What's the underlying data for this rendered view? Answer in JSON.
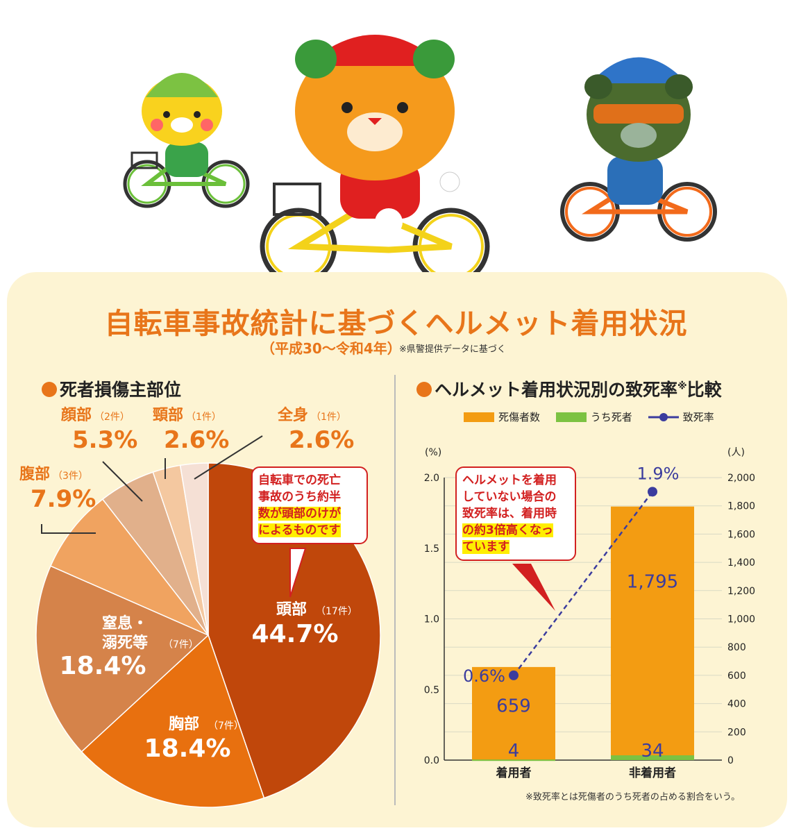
{
  "title": "自転車事故統計に基づくヘルメット着用状況",
  "subtitle": "（平成30～令和4年）",
  "source_note": "※県警提供データに基づく",
  "footnote": "※致死率とは死傷者のうち死者の占める割合をいう。",
  "colors": {
    "accent": "#e8751a",
    "panel": "#fdf4d3",
    "bar_total": "#f39c12",
    "bar_dead": "#7cc242",
    "rate": "#3b3c9e"
  },
  "pie_section": {
    "title": "死者損傷主部位",
    "callout": {
      "lines": [
        "自転車での死亡",
        "事故のうち約半",
        "数が頭部のけが",
        "によるものです"
      ]
    }
  },
  "bar_section": {
    "title": "ヘルメット着用状況別の致死率",
    "title_sup": "※",
    "title_tail": "比較",
    "legend": [
      "死傷者数",
      "うち死者",
      "致死率"
    ],
    "callout": {
      "lines": [
        "ヘルメットを着用",
        "していない場合の",
        "致死率は、着用時",
        "の約3倍高くなっ",
        "ています"
      ]
    }
  },
  "chart_data": [
    {
      "type": "pie",
      "title": "死者損傷主部位",
      "slices": [
        {
          "label": "頭部",
          "count_label": "（17件）",
          "count": 17,
          "percent": 44.7,
          "value_text": "44.7%",
          "color": "#c0470b"
        },
        {
          "label": "胸部",
          "count_label": "（7件）",
          "count": 7,
          "percent": 18.4,
          "value_text": "18.4%",
          "color": "#e8700f"
        },
        {
          "label": "窒息・溺死等",
          "label_lines": [
            "窒息・",
            "溺死等"
          ],
          "count_label": "（7件）",
          "count": 7,
          "percent": 18.4,
          "value_text": "18.4%",
          "color": "#d5834a"
        },
        {
          "label": "腹部",
          "count_label": "（3件）",
          "count": 3,
          "percent": 7.9,
          "value_text": "7.9%",
          "color": "#f0a360"
        },
        {
          "label": "顔部",
          "count_label": "（2件）",
          "count": 2,
          "percent": 5.3,
          "value_text": "5.3%",
          "color": "#e1b08b"
        },
        {
          "label": "頸部",
          "count_label": "（1件）",
          "count": 1,
          "percent": 2.6,
          "value_text": "2.6%",
          "color": "#f4c8a0"
        },
        {
          "label": "全身",
          "count_label": "（1件）",
          "count": 1,
          "percent": 2.6,
          "value_text": "2.6%",
          "color": "#f5e0d5"
        }
      ]
    },
    {
      "type": "bar",
      "title": "ヘルメット着用状況別の致死率比較",
      "categories": [
        "着用者",
        "非着用者"
      ],
      "series": [
        {
          "name": "死傷者数",
          "values": [
            659,
            1795
          ],
          "labels": [
            "659",
            "1,795"
          ]
        },
        {
          "name": "うち死者",
          "values": [
            4,
            34
          ],
          "labels": [
            "4",
            "34"
          ]
        },
        {
          "name": "致死率",
          "values": [
            0.6,
            1.9
          ],
          "labels": [
            "0.6%",
            "1.9%"
          ]
        }
      ],
      "left_axis": {
        "unit": "(%)",
        "ylim": [
          0,
          2.0
        ],
        "ticks": [
          "0.0",
          "0.5",
          "1.0",
          "1.5",
          "2.0"
        ]
      },
      "right_axis": {
        "unit": "(人)",
        "ylim": [
          0,
          2000
        ],
        "ticks": [
          "0",
          "200",
          "400",
          "600",
          "800",
          "1,000",
          "1,200",
          "1,400",
          "1,600",
          "1,800",
          "2,000"
        ]
      }
    }
  ]
}
